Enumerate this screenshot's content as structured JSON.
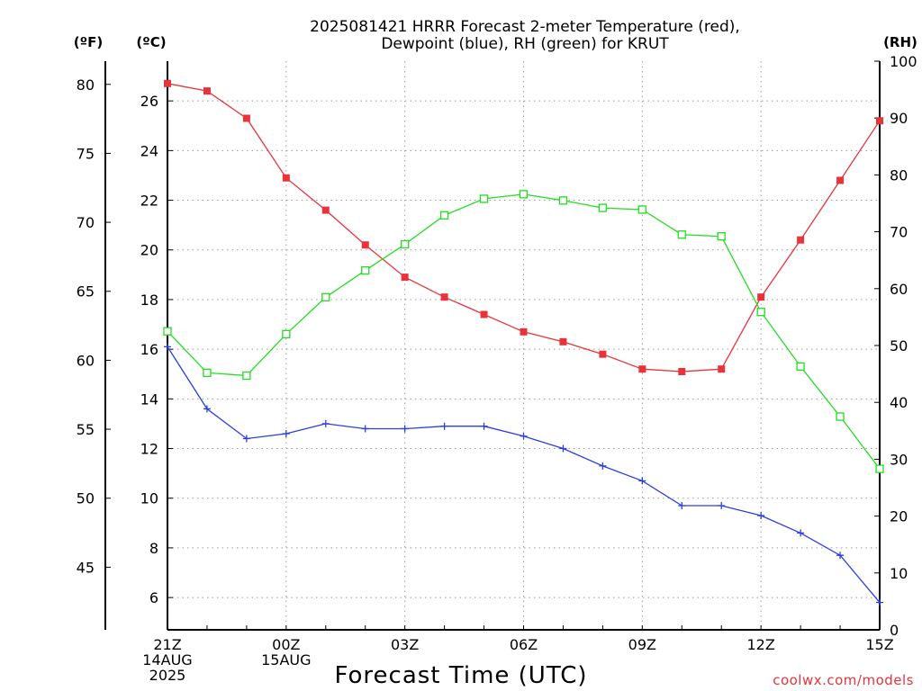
{
  "chart_data": {
    "type": "line",
    "title": "2025081421 HRRR Forecast 2-meter Temperature (red),",
    "subtitle": "Dewpoint (blue), RH (green) for KRUT",
    "xlabel": "Forecast Time (UTC)",
    "unit_labels": {
      "fahrenheit": "(ºF)",
      "celsius": "(ºC)",
      "rh": "(RH)"
    },
    "credit": "coolwx.com/models",
    "x": [
      "21Z",
      "22Z",
      "23Z",
      "00Z",
      "01Z",
      "02Z",
      "03Z",
      "04Z",
      "05Z",
      "06Z",
      "07Z",
      "08Z",
      "09Z",
      "10Z",
      "11Z",
      "12Z",
      "13Z",
      "14Z",
      "15Z"
    ],
    "x_ticks": [
      {
        "index": 0,
        "lines": [
          "21Z",
          "14AUG",
          "2025"
        ]
      },
      {
        "index": 3,
        "lines": [
          "00Z",
          "15AUG"
        ]
      },
      {
        "index": 6,
        "lines": [
          "03Z"
        ]
      },
      {
        "index": 9,
        "lines": [
          "06Z"
        ]
      },
      {
        "index": 12,
        "lines": [
          "09Z"
        ]
      },
      {
        "index": 15,
        "lines": [
          "12Z"
        ]
      },
      {
        "index": 18,
        "lines": [
          "15Z"
        ]
      }
    ],
    "celsius_axis": {
      "ylim": [
        4.7,
        27.6
      ],
      "ticks": [
        6,
        8,
        10,
        12,
        14,
        16,
        18,
        20,
        22,
        24,
        26
      ]
    },
    "fahrenheit_axis": {
      "ticks": [
        45,
        50,
        55,
        60,
        65,
        70,
        75,
        80
      ]
    },
    "rh_axis": {
      "ylim": [
        0,
        100
      ],
      "ticks": [
        0,
        10,
        20,
        30,
        40,
        50,
        60,
        70,
        80,
        90,
        100
      ]
    },
    "grid": true,
    "series": [
      {
        "name": "Temperature",
        "axis": "celsius",
        "color": "#e8333a",
        "marker": "filled-square",
        "values": [
          26.7,
          26.4,
          25.3,
          22.9,
          21.6,
          20.2,
          18.9,
          18.1,
          17.4,
          16.7,
          16.3,
          15.8,
          15.2,
          15.1,
          15.2,
          18.1,
          20.4,
          22.8,
          25.2
        ]
      },
      {
        "name": "Dewpoint",
        "axis": "celsius",
        "color": "#2a3ee6",
        "marker": "plus",
        "values": [
          16.1,
          13.6,
          12.4,
          12.6,
          13.0,
          12.8,
          12.8,
          12.9,
          12.9,
          12.5,
          12.0,
          11.3,
          10.7,
          9.7,
          9.7,
          9.3,
          8.6,
          7.7,
          5.8
        ]
      },
      {
        "name": "RH",
        "axis": "rh",
        "color": "#22dd22",
        "marker": "open-square",
        "values": [
          52.5,
          45.2,
          44.7,
          52.0,
          58.5,
          63.2,
          67.8,
          72.9,
          75.8,
          76.6,
          75.5,
          74.2,
          73.9,
          69.5,
          69.2,
          55.9,
          46.3,
          37.5,
          28.3
        ]
      }
    ]
  }
}
